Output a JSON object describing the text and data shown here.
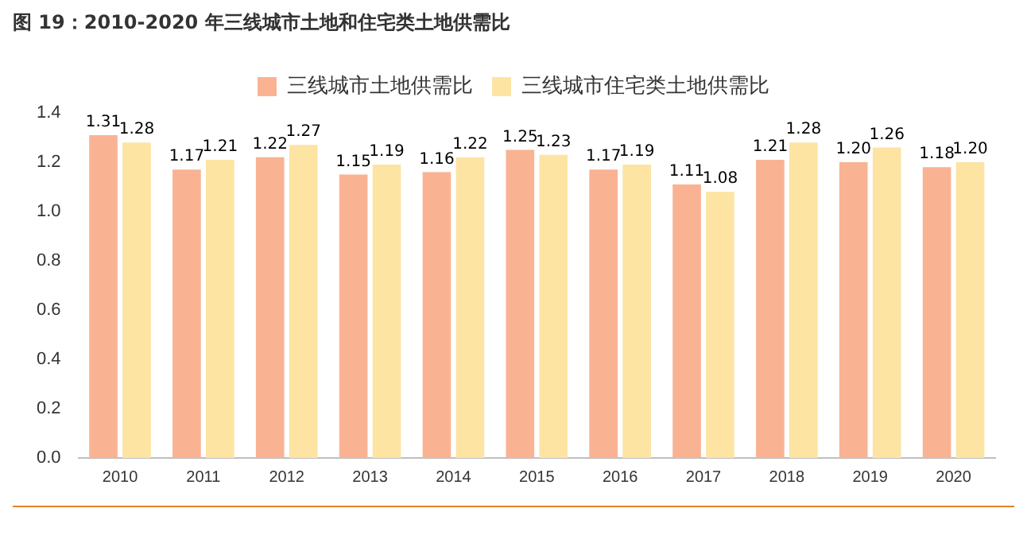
{
  "chart_data": {
    "type": "bar",
    "title": "图 19：2010-2020 年三线城市土地和住宅类土地供需比",
    "categories": [
      "2010",
      "2011",
      "2012",
      "2013",
      "2014",
      "2015",
      "2016",
      "2017",
      "2018",
      "2019",
      "2020"
    ],
    "series": [
      {
        "name": "三线城市土地供需比",
        "color": "#f9b393",
        "values": [
          1.31,
          1.17,
          1.22,
          1.15,
          1.16,
          1.25,
          1.17,
          1.11,
          1.21,
          1.2,
          1.18
        ],
        "value_labels": [
          "1.31",
          "1.17",
          "1.22",
          "1.15",
          "1.16",
          "1.25",
          "1.17",
          "1.11",
          "1.21",
          "1.20",
          "1.18"
        ]
      },
      {
        "name": "三线城市住宅类土地供需比",
        "color": "#fde4a3",
        "values": [
          1.28,
          1.21,
          1.27,
          1.19,
          1.22,
          1.23,
          1.19,
          1.08,
          1.28,
          1.26,
          1.2
        ],
        "value_labels": [
          "1.28",
          "1.21",
          "1.27",
          "1.19",
          "1.22",
          "1.23",
          "1.19",
          "1.08",
          "1.28",
          "1.26",
          "1.20"
        ]
      }
    ],
    "ylim": [
      0,
      1.4
    ],
    "yticks": [
      {
        "value": 0,
        "label": "0.0"
      },
      {
        "value": 0.2,
        "label": "0.2"
      },
      {
        "value": 0.4,
        "label": "0.4"
      },
      {
        "value": 0.6,
        "label": "0.6"
      },
      {
        "value": 0.8,
        "label": "0.8"
      },
      {
        "value": 1.0,
        "label": "1.0"
      },
      {
        "value": 1.2,
        "label": "1.2"
      },
      {
        "value": 1.4,
        "label": "1.4"
      }
    ],
    "grid": false,
    "legend": "top"
  }
}
